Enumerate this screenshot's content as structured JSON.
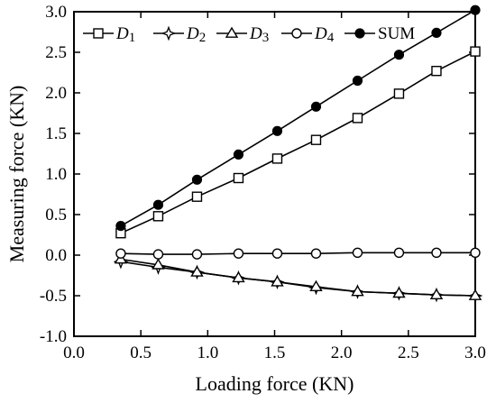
{
  "chart_data": {
    "type": "line",
    "title": "",
    "xlabel": "Loading force (KN)",
    "ylabel": "Measuring force  (KN)",
    "xlim": [
      0.0,
      3.0
    ],
    "ylim": [
      -1.0,
      3.0
    ],
    "x_ticks": [
      "0.0",
      "0.5",
      "1.0",
      "1.5",
      "2.0",
      "2.5",
      "3.0"
    ],
    "y_ticks": [
      "-1.0",
      "-0.5",
      "0.0",
      "0.5",
      "1.0",
      "1.5",
      "2.0",
      "2.5",
      "3.0"
    ],
    "grid": false,
    "legend_position": "top",
    "x": [
      0.35,
      0.63,
      0.92,
      1.23,
      1.52,
      1.81,
      2.12,
      2.43,
      2.71,
      3.0
    ],
    "series": [
      {
        "name": "D1",
        "name_base": "D",
        "name_sub": "1",
        "marker": "square-open",
        "color": "#000000",
        "values": [
          0.27,
          0.48,
          0.72,
          0.95,
          1.19,
          1.42,
          1.69,
          1.99,
          2.27,
          2.51
        ]
      },
      {
        "name": "D2",
        "name_base": "D",
        "name_sub": "2",
        "marker": "star-open",
        "color": "#000000",
        "values": [
          -0.08,
          -0.15,
          -0.21,
          -0.28,
          -0.33,
          -0.4,
          -0.45,
          -0.47,
          -0.49,
          -0.5
        ]
      },
      {
        "name": "D3",
        "name_base": "D",
        "name_sub": "3",
        "marker": "triangle-open",
        "color": "#000000",
        "values": [
          -0.05,
          -0.12,
          -0.21,
          -0.28,
          -0.33,
          -0.39,
          -0.45,
          -0.47,
          -0.49,
          -0.5
        ]
      },
      {
        "name": "D4",
        "name_base": "D",
        "name_sub": "4",
        "marker": "circle-open",
        "color": "#000000",
        "values": [
          0.02,
          0.01,
          0.01,
          0.02,
          0.02,
          0.02,
          0.03,
          0.03,
          0.03,
          0.03
        ]
      },
      {
        "name": "SUM",
        "name_base": "SUM",
        "name_sub": "",
        "marker": "circle-filled",
        "color": "#000000",
        "values": [
          0.36,
          0.62,
          0.93,
          1.24,
          1.53,
          1.83,
          2.15,
          2.47,
          2.74,
          3.02
        ]
      }
    ]
  }
}
